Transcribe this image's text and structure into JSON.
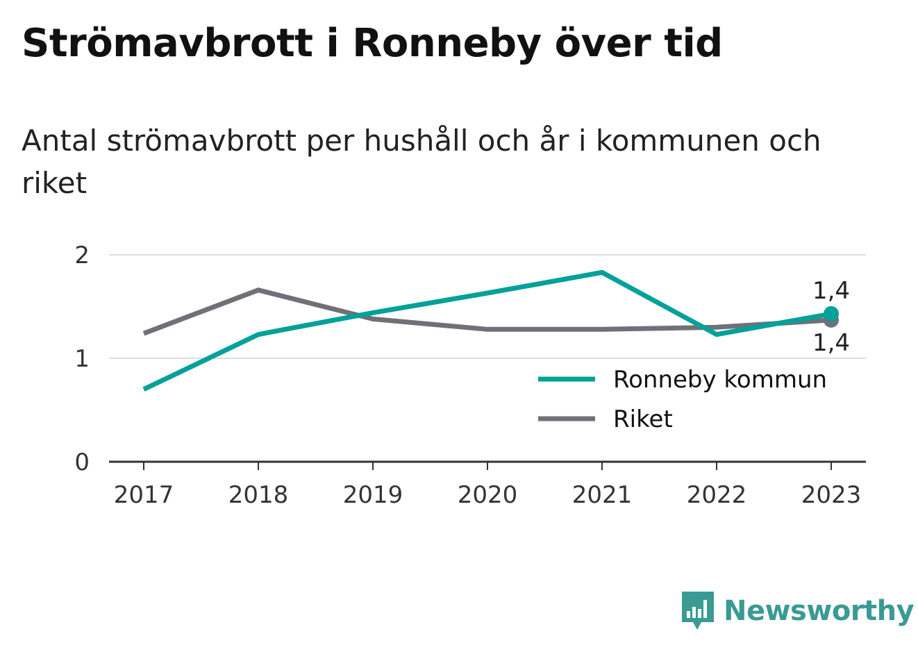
{
  "chart_data": {
    "type": "line",
    "title": "Strömavbrott i Ronneby över tid",
    "subtitle": "Antal strömavbrott per hushåll och år i kommunen och riket",
    "x": [
      "2017",
      "2018",
      "2019",
      "2020",
      "2021",
      "2022",
      "2023"
    ],
    "ylim": [
      0,
      2
    ],
    "yticks": [
      "0",
      "1",
      "2"
    ],
    "grid": true,
    "legend_position": "bottom-right",
    "series": [
      {
        "name": "Ronneby kommun",
        "color": "#00a19a",
        "values": [
          0.7,
          1.23,
          1.44,
          1.63,
          1.83,
          1.23,
          1.43
        ]
      },
      {
        "name": "Riket",
        "color": "#707077",
        "values": [
          1.24,
          1.66,
          1.38,
          1.28,
          1.28,
          1.3,
          1.37
        ]
      }
    ],
    "end_labels": [
      {
        "series": "Ronneby kommun",
        "text": "1,4",
        "position": "above"
      },
      {
        "series": "Riket",
        "text": "1,4",
        "position": "below"
      }
    ]
  },
  "brand": {
    "name": "Newsworthy",
    "icon": "newsworthy-logo-icon",
    "color": "#3a9a94"
  }
}
